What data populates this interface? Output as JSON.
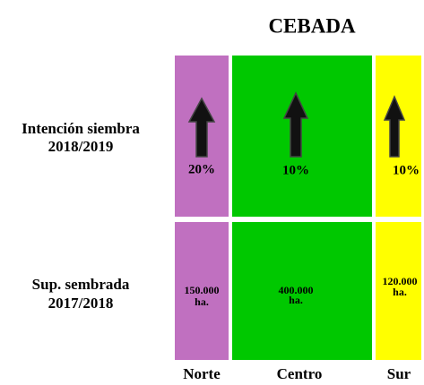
{
  "title": "CEBADA",
  "rows": [
    {
      "label": [
        "Intención siembra",
        "2018/2019"
      ]
    },
    {
      "label": [
        "Sup. sembrada",
        "2017/2018"
      ]
    }
  ],
  "regions": [
    {
      "name": "Norte",
      "intention": "20%",
      "area": [
        "150.000",
        "ha."
      ]
    },
    {
      "name": "Centro",
      "intention": "10%",
      "area": [
        "400.000",
        "ha."
      ]
    },
    {
      "name": "Sur",
      "intention": "10%",
      "area": [
        "120.000",
        "ha."
      ]
    }
  ]
}
